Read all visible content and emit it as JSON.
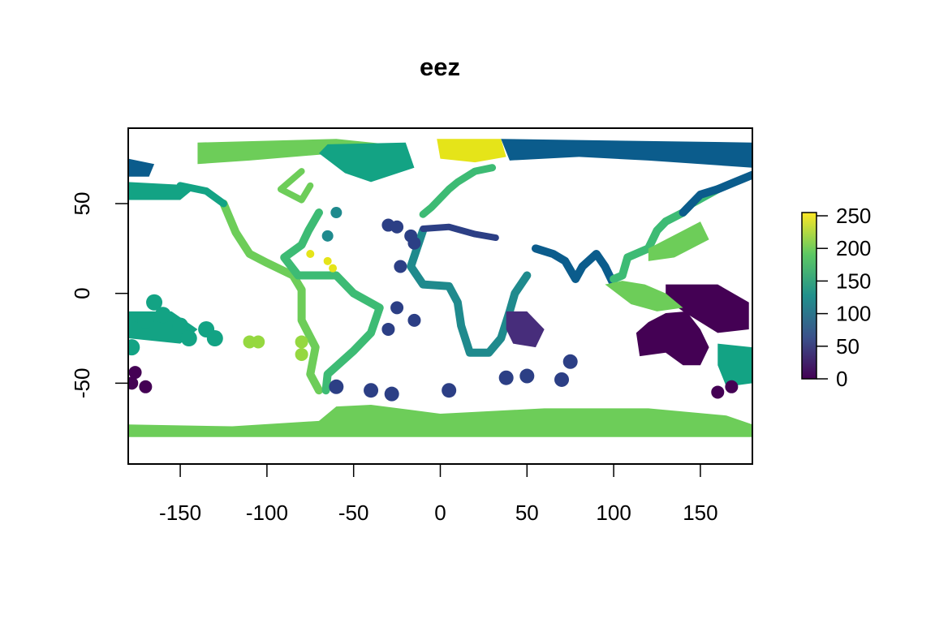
{
  "chart_data": {
    "type": "heatmap",
    "title": "eez",
    "xlabel": "",
    "ylabel": "",
    "xlim": [
      -180,
      180
    ],
    "ylim": [
      -95,
      92
    ],
    "x_ticks": [
      -150,
      -100,
      -50,
      0,
      50,
      100,
      150
    ],
    "y_ticks": [
      -50,
      0,
      50
    ],
    "legend": {
      "placement": "right",
      "range": [
        0,
        255
      ],
      "ticks": [
        0,
        50,
        100,
        150,
        200,
        250
      ],
      "palette": [
        "#440154",
        "#3b528b",
        "#21908c",
        "#5dc863",
        "#fde725"
      ]
    },
    "grid": false
  }
}
